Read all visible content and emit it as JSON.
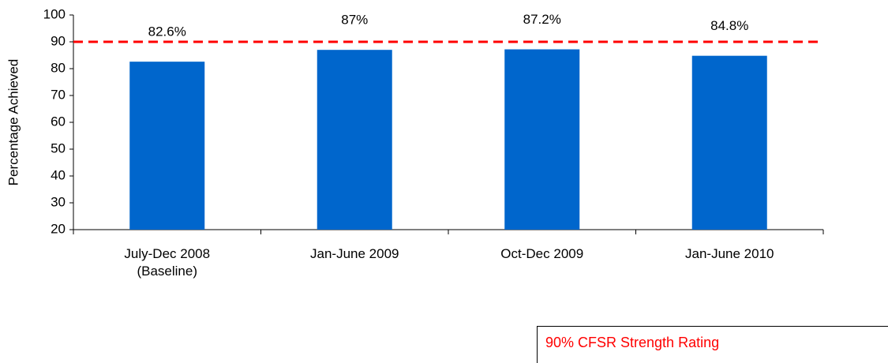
{
  "chart_data": {
    "type": "bar",
    "y_label": "Percentage Achieved",
    "categories": [
      "July-Dec 2008\n(Baseline)",
      "Jan-June 2009",
      "Oct-Dec 2009",
      "Jan-June 2010"
    ],
    "values": [
      82.6,
      87,
      87.2,
      84.8
    ],
    "value_labels": [
      "82.6%",
      "87%",
      "87.2%",
      "84.8%"
    ],
    "color": "#0066cc",
    "ylim": [
      20,
      100
    ],
    "yticks": [
      20,
      30,
      40,
      50,
      60,
      70,
      80,
      90,
      100
    ],
    "reference_line": {
      "value": 90,
      "label": "90% CFSR Strength Rating",
      "color": "#ff0000"
    }
  }
}
